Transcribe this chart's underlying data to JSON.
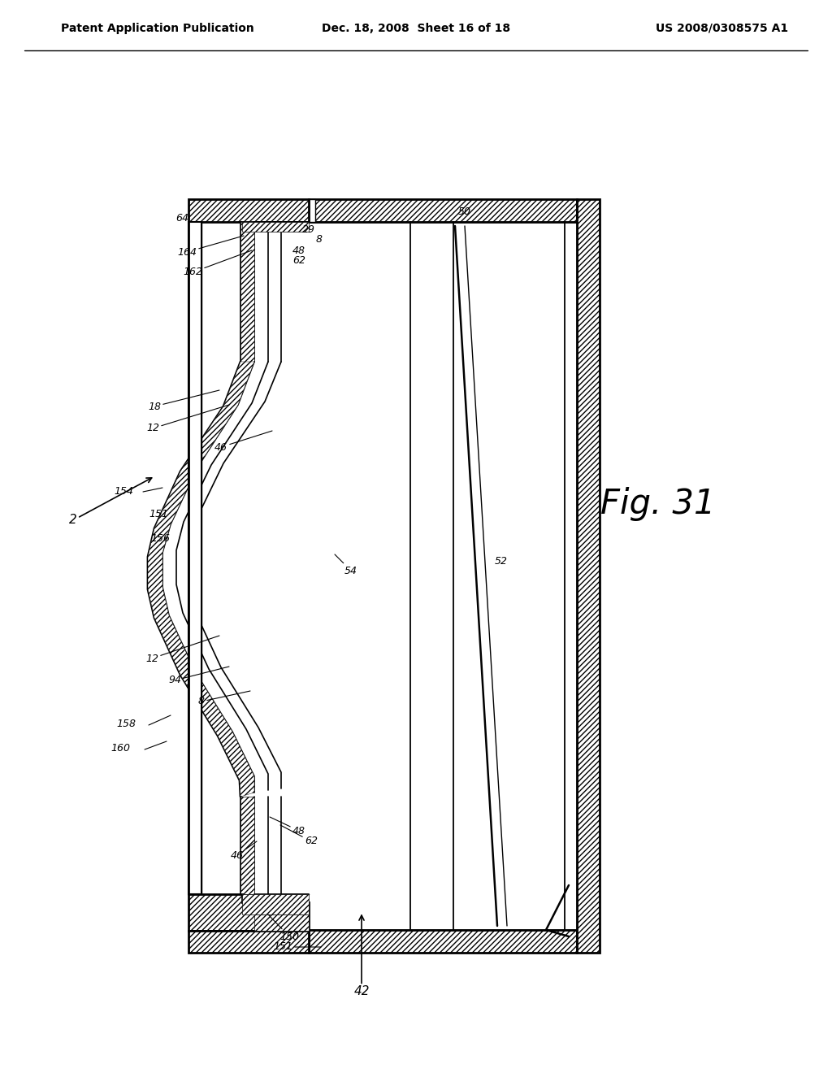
{
  "header_left": "Patent Application Publication",
  "header_mid": "Dec. 18, 2008  Sheet 16 of 18",
  "header_right": "US 2008/0308575 A1",
  "fig_label": "Fig. 31",
  "bg": "#ffffff"
}
